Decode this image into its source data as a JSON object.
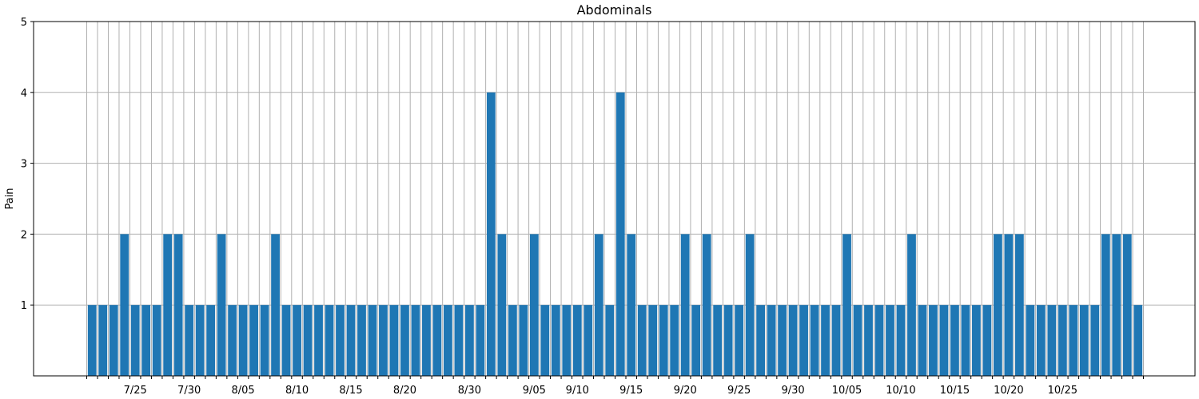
{
  "chart_data": {
    "type": "bar",
    "title": "Abdominals",
    "xlabel": "",
    "ylabel": "Pain",
    "start_date": "2021-07-21",
    "values": [
      1,
      1,
      1,
      2,
      1,
      1,
      1,
      2,
      2,
      1,
      1,
      1,
      2,
      1,
      1,
      1,
      1,
      2,
      1,
      1,
      1,
      1,
      1,
      1,
      1,
      1,
      1,
      1,
      1,
      1,
      1,
      1,
      1,
      1,
      1,
      1,
      1,
      4,
      2,
      1,
      1,
      2,
      1,
      1,
      1,
      1,
      1,
      2,
      1,
      4,
      2,
      1,
      1,
      1,
      1,
      2,
      1,
      2,
      1,
      1,
      1,
      2,
      1,
      1,
      1,
      1,
      1,
      1,
      1,
      1,
      2,
      1,
      1,
      1,
      1,
      1,
      2,
      1,
      1,
      1,
      1,
      1,
      1,
      1,
      2,
      2,
      2,
      1,
      1,
      1,
      1,
      1,
      1,
      1,
      2,
      2,
      2,
      1
    ],
    "x_tick_labels": [
      "7/25",
      "7/30",
      "8/05",
      "8/10",
      "8/15",
      "8/20",
      "8/30",
      "9/05",
      "9/10",
      "9/15",
      "9/20",
      "9/25",
      "9/30",
      "10/05",
      "10/10",
      "10/15",
      "10/20",
      "10/25"
    ],
    "x_tick_label_days": [
      4,
      9,
      14,
      19,
      24,
      29,
      35,
      41,
      45,
      50,
      55,
      60,
      65,
      70,
      75,
      80,
      85,
      90
    ],
    "yticks": [
      1,
      2,
      3,
      4,
      5
    ],
    "ylim": [
      0,
      5
    ],
    "grid": true,
    "colors": {
      "bar": "#1f77b4",
      "grid": "#b0b0b0",
      "axis": "#000000"
    }
  }
}
